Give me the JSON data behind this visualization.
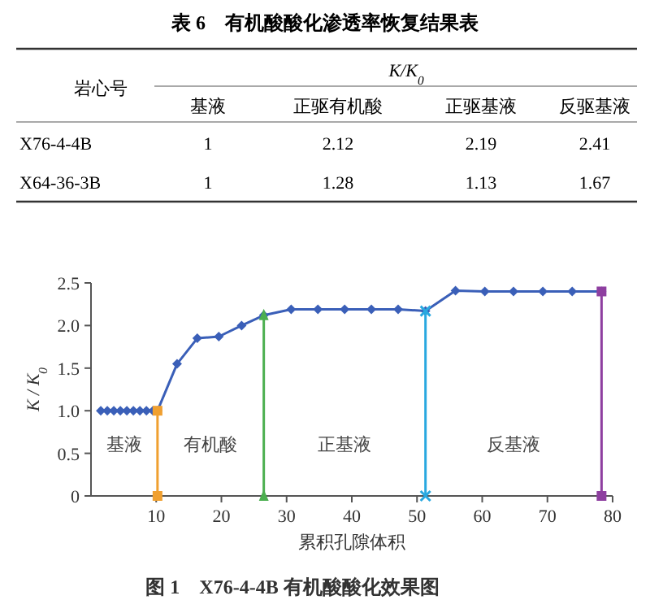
{
  "chart_data": [
    {
      "type": "other",
      "title": "表 6　有机酸酸化渗透率恢复结果表",
      "ylabel": "岩心号",
      "xlabel": "K/K$_{0}$",
      "categories": [
        "基液",
        "正驱有机酸",
        "正驱基液",
        "反驱基液"
      ],
      "y_categories": [
        "X76-4-4B",
        "X64-36-3B"
      ],
      "cell_labels": [
        [
          "1",
          "2.12",
          "2.19",
          "2.41"
        ],
        [
          "1",
          "1.28",
          "1.13",
          "1.67"
        ]
      ]
    },
    {
      "type": "line",
      "title": "图 1　X76-4-4B 有机酸酸化效果图",
      "xlabel": "累积孔隙体积",
      "ylabel": "K / K$_{0}$",
      "xlim": [
        0,
        80
      ],
      "xticks": [
        10,
        20,
        30,
        40,
        50,
        60,
        70,
        80
      ],
      "ylim": [
        0,
        2.5
      ],
      "yticks": [
        {
          "value": 0,
          "label": "0"
        },
        {
          "value": 0.5,
          "label": "0.5"
        },
        {
          "value": 1,
          "label": "1.0"
        },
        {
          "value": 1.5,
          "label": "1.5"
        },
        {
          "value": 2,
          "label": "2.0"
        },
        {
          "value": 2.5,
          "label": "2.5"
        }
      ],
      "marker": "diamond",
      "series": [
        {
          "color": "#3a5fb8",
          "x": [
            1.5,
            2.5,
            3.5,
            4.5,
            5.5,
            6.5,
            7.5,
            8.5,
            9.5,
            10.2,
            13.2,
            16.3,
            19.6,
            23.1,
            26.5,
            30.7,
            34.8,
            38.9,
            43,
            47.1,
            51.3,
            55.9,
            60.4,
            64.8,
            69.3,
            73.8,
            78.3
          ],
          "values": [
            1,
            1,
            1,
            1,
            1,
            1,
            1,
            1,
            1,
            1,
            1.55,
            1.85,
            1.87,
            2,
            2.12,
            2.19,
            2.19,
            2.19,
            2.19,
            2.19,
            2.17,
            2.41,
            2.4,
            2.4,
            2.4,
            2.4,
            2.4
          ]
        },
        {
          "color": "#f0a030",
          "marker": "square",
          "x": [
            10.2,
            10.2
          ],
          "values": [
            0,
            1
          ]
        },
        {
          "color": "#4caf50",
          "marker": "triangle",
          "x": [
            26.5,
            26.5
          ],
          "values": [
            0,
            2.12
          ]
        },
        {
          "color": "#29a8e0",
          "marker": "cross",
          "x": [
            51.3,
            51.3
          ],
          "values": [
            0,
            2.17
          ]
        },
        {
          "color": "#8e3fa0",
          "marker": "square",
          "x": [
            78.3,
            78.3
          ],
          "values": [
            0,
            2.4
          ]
        }
      ],
      "annotations": [
        "基液",
        "有机酸",
        "正基液",
        "反基液"
      ]
    }
  ]
}
